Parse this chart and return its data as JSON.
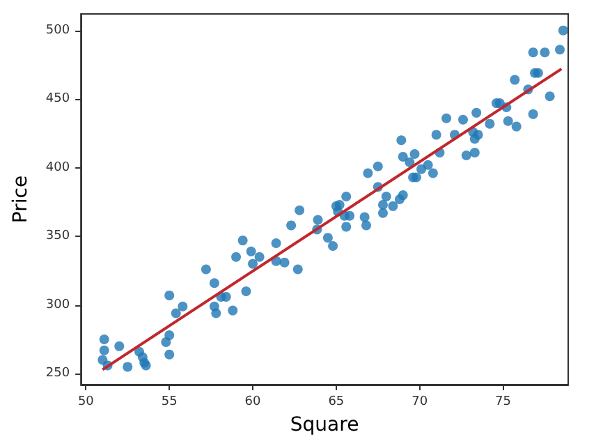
{
  "chart_data": {
    "type": "scatter",
    "xlabel": "Square",
    "ylabel": "Price",
    "xlim": [
      49.7,
      78.9
    ],
    "ylim": [
      242,
      512
    ],
    "xticks": [
      50,
      55,
      60,
      65,
      70,
      75
    ],
    "yticks": [
      250,
      300,
      350,
      400,
      450,
      500
    ],
    "grid": false,
    "series": [
      {
        "color": "#1f77b4",
        "marker": "circle",
        "x": [
          51.1,
          51.1,
          51.0,
          51.3,
          52.0,
          52.5,
          53.2,
          53.4,
          53.5,
          53.6,
          55.0,
          55.0,
          54.8,
          55.0,
          55.4,
          55.8,
          57.2,
          57.7,
          58.1,
          57.7,
          57.8,
          58.4,
          58.8,
          59.0,
          59.4,
          59.6,
          59.9,
          60.4,
          60.0,
          61.4,
          61.4,
          61.9,
          62.7,
          62.3,
          62.8,
          63.9,
          63.85,
          64.5,
          64.8,
          65.0,
          65.1,
          65.2,
          65.6,
          65.5,
          65.8,
          65.6,
          66.7,
          66.8,
          66.9,
          67.5,
          67.5,
          67.8,
          67.8,
          68.0,
          68.4,
          68.8,
          69.0,
          68.9,
          69.0,
          69.4,
          69.7,
          69.6,
          69.8,
          70.1,
          70.5,
          70.8,
          71.2,
          71.0,
          71.6,
          72.1,
          72.6,
          72.8,
          73.3,
          73.3,
          73.2,
          73.5,
          73.4,
          74.2,
          74.6,
          74.8,
          75.2,
          75.3,
          75.8,
          75.7,
          76.5,
          76.9,
          77.1,
          76.8,
          77.5,
          76.8,
          77.8,
          78.4,
          78.6
        ],
        "values": [
          275,
          267,
          260,
          256,
          270,
          255,
          266,
          262,
          258,
          256,
          307,
          278,
          273,
          264,
          294,
          299,
          326,
          316,
          306,
          299,
          294,
          306,
          296,
          335,
          347,
          310,
          339,
          335,
          330,
          345,
          332,
          331,
          326,
          358,
          369,
          362,
          355,
          349,
          343,
          372,
          368,
          373,
          379,
          365,
          365,
          357,
          364,
          358,
          396,
          401,
          386,
          373,
          367,
          379,
          372,
          377,
          380,
          420,
          408,
          404,
          410,
          393,
          393,
          399,
          402,
          396,
          411,
          424,
          436,
          424,
          435,
          409,
          411,
          421,
          426,
          424,
          440,
          432,
          447,
          447,
          444,
          434,
          430,
          464,
          457,
          469,
          469,
          484,
          484,
          439,
          452,
          486,
          500
        ]
      },
      {
        "type": "line",
        "marker": "none",
        "color": "#c0282d",
        "x": [
          51,
          78.5
        ],
        "values": [
          253,
          472
        ]
      }
    ]
  }
}
